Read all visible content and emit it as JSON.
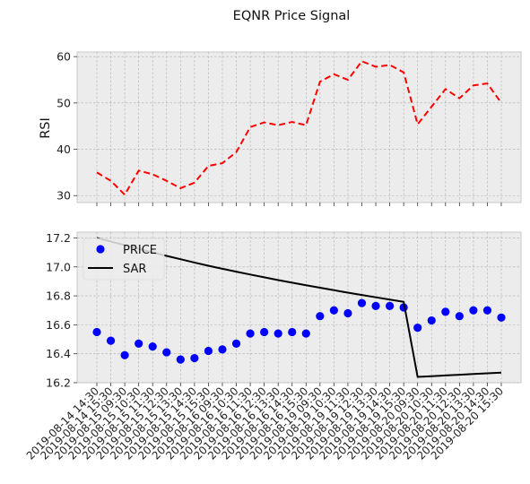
{
  "chart_data": {
    "title": "EQNR Price Signal",
    "type": "line",
    "x": [
      "2019-08-14 14:30",
      "2019-08-14 15:30",
      "2019-08-15 09:30",
      "2019-08-15 10:30",
      "2019-08-15 11:30",
      "2019-08-15 12:30",
      "2019-08-15 13:30",
      "2019-08-15 14:30",
      "2019-08-15 15:30",
      "2019-08-16 09:30",
      "2019-08-16 10:30",
      "2019-08-16 11:30",
      "2019-08-16 12:30",
      "2019-08-16 13:30",
      "2019-08-16 14:30",
      "2019-08-16 15:30",
      "2019-08-19 09:30",
      "2019-08-19 10:30",
      "2019-08-19 11:30",
      "2019-08-19 12:30",
      "2019-08-19 13:30",
      "2019-08-19 14:30",
      "2019-08-19 15:30",
      "2019-08-20 09:30",
      "2019-08-20 10:30",
      "2019-08-20 11:30",
      "2019-08-20 12:30",
      "2019-08-20 13:30",
      "2019-08-20 14:30",
      "2019-08-20 15:30"
    ],
    "top": {
      "ylabel": "RSI",
      "ylim": [
        28.5,
        61
      ],
      "yticks": [
        30,
        40,
        50,
        60
      ],
      "grid": true,
      "series": [
        {
          "color": "#ff0000",
          "style": "dashed",
          "values": [
            35.0,
            33.2,
            30.2,
            35.4,
            34.6,
            33.2,
            31.6,
            32.8,
            36.4,
            37.0,
            39.4,
            44.8,
            45.8,
            45.2,
            45.9,
            45.2,
            54.6,
            56.2,
            55.0,
            59.0,
            57.8,
            58.2,
            56.6,
            45.4,
            49.2,
            53.0,
            51.0,
            53.8,
            54.2,
            50.0
          ]
        }
      ]
    },
    "bottom": {
      "ylim": [
        16.2,
        17.24
      ],
      "yticks": [
        16.2,
        16.4,
        16.6,
        16.8,
        17.0,
        17.2
      ],
      "grid": true,
      "legend_position": "upper-left",
      "series": [
        {
          "name": "PRICE",
          "type": "scatter",
          "color": "#0000ff",
          "values": [
            16.55,
            16.49,
            16.39,
            16.47,
            16.45,
            16.41,
            16.36,
            16.37,
            16.42,
            16.43,
            16.47,
            16.54,
            16.55,
            16.54,
            16.55,
            16.54,
            16.66,
            16.7,
            16.68,
            16.75,
            16.73,
            16.73,
            16.72,
            16.58,
            16.63,
            16.69,
            16.66,
            16.7,
            16.7,
            16.65
          ]
        },
        {
          "name": "SAR",
          "type": "line",
          "color": "#000000",
          "values": [
            17.2,
            17.175,
            17.15,
            17.125,
            17.1,
            17.076,
            17.053,
            17.03,
            17.008,
            16.987,
            16.967,
            16.947,
            16.928,
            16.909,
            16.891,
            16.873,
            16.856,
            16.839,
            16.822,
            16.806,
            16.79,
            16.774,
            16.759,
            16.24,
            16.245,
            16.25,
            16.255,
            16.26,
            16.265,
            16.27
          ]
        }
      ]
    }
  }
}
